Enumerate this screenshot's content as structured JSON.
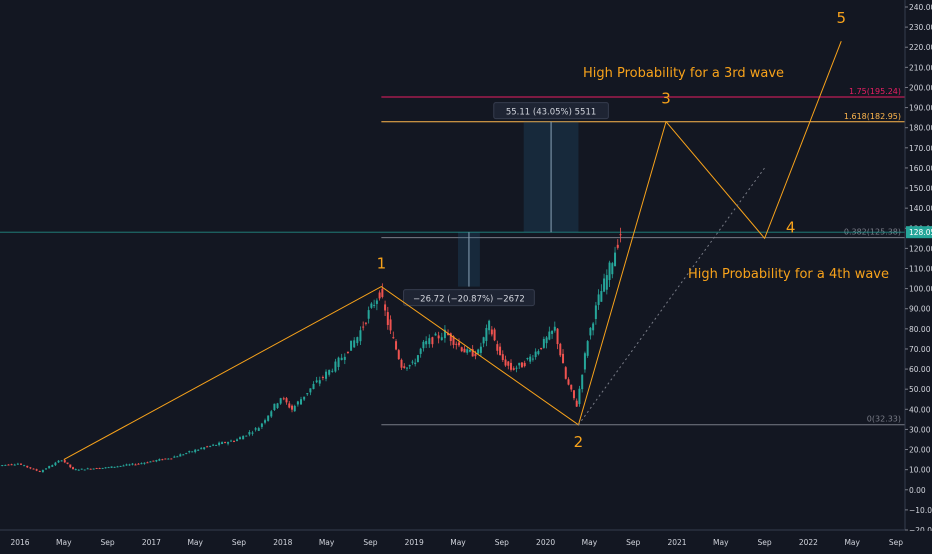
{
  "chart_data": {
    "type": "line",
    "title": "",
    "xlabel": "",
    "ylabel": "",
    "ylim": [
      -20,
      240
    ],
    "y_ticks": [
      240,
      230,
      220,
      210,
      200,
      190,
      180,
      170,
      160,
      150,
      140,
      130,
      120,
      110,
      100,
      90,
      80,
      70,
      60,
      50,
      40,
      30,
      20,
      10,
      0,
      -10,
      -20
    ],
    "y_tick_labels": [
      "240.00",
      "230.00",
      "220.00",
      "210.00",
      "200.00",
      "190.00",
      "180.00",
      "170.00",
      "160.00",
      "150.00",
      "140.00",
      "130.00",
      "120.00",
      "110.00",
      "100.00",
      "90.00",
      "80.00",
      "70.00",
      "60.00",
      "50.00",
      "40.00",
      "30.00",
      "20.00",
      "10.00",
      "0.00",
      "−10.00",
      "−20.00"
    ],
    "xlim": [
      "2016-01",
      "2022-09"
    ],
    "x_ticks": [
      {
        "label": "2016",
        "date": "2016-01"
      },
      {
        "label": "May",
        "date": "2016-05"
      },
      {
        "label": "Sep",
        "date": "2016-09"
      },
      {
        "label": "2017",
        "date": "2017-01"
      },
      {
        "label": "May",
        "date": "2017-05"
      },
      {
        "label": "Sep",
        "date": "2017-09"
      },
      {
        "label": "2018",
        "date": "2018-01"
      },
      {
        "label": "May",
        "date": "2018-05"
      },
      {
        "label": "Sep",
        "date": "2018-09"
      },
      {
        "label": "2019",
        "date": "2019-01"
      },
      {
        "label": "May",
        "date": "2019-05"
      },
      {
        "label": "Sep",
        "date": "2019-09"
      },
      {
        "label": "2020",
        "date": "2020-01"
      },
      {
        "label": "May",
        "date": "2020-05"
      },
      {
        "label": "Sep",
        "date": "2020-09"
      },
      {
        "label": "2021",
        "date": "2021-01"
      },
      {
        "label": "May",
        "date": "2021-05"
      },
      {
        "label": "Sep",
        "date": "2021-09"
      },
      {
        "label": "2022",
        "date": "2022-01"
      },
      {
        "label": "May",
        "date": "2022-05"
      },
      {
        "label": "Sep",
        "date": "2022-09"
      }
    ],
    "series": [
      {
        "color": "#26a69a",
        "points": [
          {
            "x": "2015-11",
            "y": 12
          },
          {
            "x": "2016-01",
            "y": 13
          },
          {
            "x": "2016-03",
            "y": 9
          },
          {
            "x": "2016-05",
            "y": 15
          },
          {
            "x": "2016-06",
            "y": 10
          },
          {
            "x": "2016-09",
            "y": 11
          },
          {
            "x": "2016-12",
            "y": 13
          },
          {
            "x": "2017-03",
            "y": 16
          },
          {
            "x": "2017-06",
            "y": 21
          },
          {
            "x": "2017-09",
            "y": 25
          },
          {
            "x": "2017-11",
            "y": 31
          },
          {
            "x": "2018-01",
            "y": 46
          },
          {
            "x": "2018-02",
            "y": 40
          },
          {
            "x": "2018-04",
            "y": 52
          },
          {
            "x": "2018-06",
            "y": 62
          },
          {
            "x": "2018-08",
            "y": 76
          },
          {
            "x": "2018-09",
            "y": 88
          },
          {
            "x": "2018-10",
            "y": 98
          },
          {
            "x": "2018-11",
            "y": 78
          },
          {
            "x": "2018-12",
            "y": 62
          },
          {
            "x": "2019-01",
            "y": 62
          },
          {
            "x": "2019-02",
            "y": 72
          },
          {
            "x": "2019-04",
            "y": 78
          },
          {
            "x": "2019-05",
            "y": 73
          },
          {
            "x": "2019-06",
            "y": 68
          },
          {
            "x": "2019-07",
            "y": 68
          },
          {
            "x": "2019-08",
            "y": 82
          },
          {
            "x": "2019-09",
            "y": 66
          },
          {
            "x": "2019-10",
            "y": 60
          },
          {
            "x": "2019-11",
            "y": 62
          },
          {
            "x": "2019-12",
            "y": 67
          },
          {
            "x": "2020-01",
            "y": 73
          },
          {
            "x": "2020-02",
            "y": 80
          },
          {
            "x": "2020-03",
            "y": 55
          },
          {
            "x": "2020-04",
            "y": 42
          },
          {
            "x": "2020-05",
            "y": 75
          },
          {
            "x": "2020-06",
            "y": 95
          },
          {
            "x": "2020-07",
            "y": 110
          },
          {
            "x": "2020-08",
            "y": 128
          }
        ]
      }
    ],
    "wave_points": [
      {
        "label": "1",
        "x": "2018-10",
        "y": 101
      },
      {
        "label": "2",
        "x": "2020-04",
        "y": 32.3
      },
      {
        "label": "3",
        "x": "2020-12",
        "y": 183
      },
      {
        "label": "4",
        "x": "2021-09",
        "y": 125
      },
      {
        "label": "5",
        "x": "2022-04",
        "y": 223
      }
    ],
    "fib_levels": [
      {
        "label": "1.75(195.24)",
        "value": 195.24,
        "color": "#e91e63"
      },
      {
        "label": "1.618(182.95)",
        "value": 182.95,
        "color": "#ffb74d"
      },
      {
        "label": "0.382(125.38)",
        "value": 125.38,
        "color": "#787b86"
      },
      {
        "label": "0(32.33)",
        "value": 32.33,
        "color": "#787b86"
      }
    ],
    "current_price": {
      "label": "128.05",
      "value": 128.05,
      "color": "#26a69a"
    },
    "measure_boxes": [
      {
        "label": "55.11 (43.05%) 5511",
        "y_from": 128,
        "y_to": 183
      },
      {
        "label": "−26.72 (−20.87%) −2672",
        "y_from": 128,
        "y_to": 101
      }
    ],
    "annotations": [
      {
        "text": "High Probability for a 3rd wave"
      },
      {
        "text": "High Probability for a 4th wave"
      }
    ],
    "grid": false,
    "colors": {
      "background": "#131722",
      "up": "#26a69a",
      "down": "#ef5350",
      "wave": "#f7a21b",
      "axis_text": "#d1d4dc"
    }
  }
}
